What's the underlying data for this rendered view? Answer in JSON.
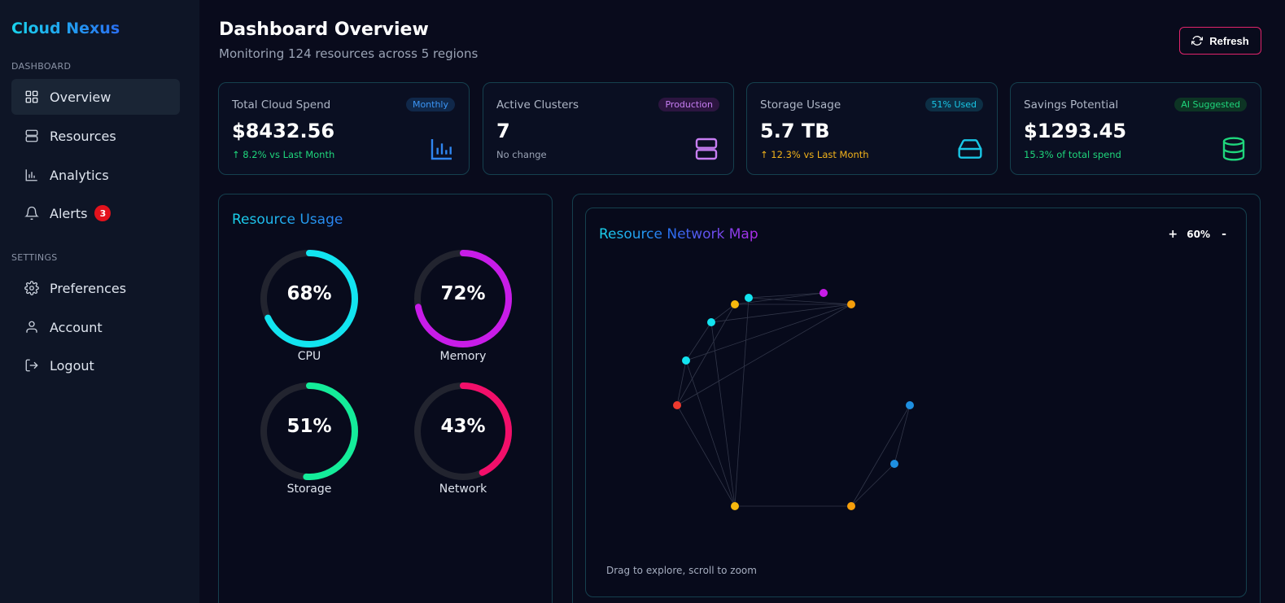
{
  "sidebar": {
    "logo": "Cloud Nexus",
    "sections": [
      {
        "label": "DASHBOARD"
      },
      {
        "label": "SETTINGS"
      }
    ],
    "items": [
      {
        "label": "Overview",
        "icon": "grid-icon",
        "active": true
      },
      {
        "label": "Resources",
        "icon": "server-icon"
      },
      {
        "label": "Analytics",
        "icon": "bar-chart-icon"
      },
      {
        "label": "Alerts",
        "icon": "bell-icon",
        "badge": "3"
      },
      {
        "label": "Preferences",
        "icon": "gear-icon"
      },
      {
        "label": "Account",
        "icon": "user-icon"
      },
      {
        "label": "Logout",
        "icon": "logout-icon"
      }
    ]
  },
  "header": {
    "title": "Dashboard Overview",
    "subtitle": "Monitoring 124 resources across 5 regions",
    "refresh_label": "Refresh"
  },
  "cards": [
    {
      "title": "Total Cloud Spend",
      "badge": "Monthly",
      "value": "$8432.56",
      "sub": "↑ 8.2% vs Last Month",
      "icon": "bar-chart-icon",
      "accent": "#2f86f0"
    },
    {
      "title": "Active Clusters",
      "badge": "Production",
      "value": "7",
      "sub": "No change",
      "icon": "server-icon",
      "accent": "#c77ef3"
    },
    {
      "title": "Storage Usage",
      "badge": "51% Used",
      "value": "5.7 TB",
      "sub": "↑ 12.3% vs Last Month",
      "icon": "hard-drive-icon",
      "accent": "#19c7e6"
    },
    {
      "title": "Savings Potential",
      "badge": "AI Suggested",
      "value": "$1293.45",
      "sub": "15.3% of total spend",
      "icon": "database-icon",
      "accent": "#1fd67c"
    }
  ],
  "resource_usage": {
    "title": "Resource Usage",
    "gauges": [
      {
        "label": "CPU",
        "value": "68%",
        "fraction": 0.68,
        "color": "#12e4f0"
      },
      {
        "label": "Memory",
        "value": "72%",
        "fraction": 0.72,
        "color": "#c81ce8"
      },
      {
        "label": "Storage",
        "value": "51%",
        "fraction": 0.51,
        "color": "#14ec9a"
      },
      {
        "label": "Network",
        "value": "43%",
        "fraction": 0.43,
        "color": "#f20f6a"
      }
    ]
  },
  "network_map": {
    "title": "Resource Network Map",
    "zoom_in": "+",
    "zoom_value": "60%",
    "zoom_out": "-",
    "hint": "Drag to explore, scroll to zoom"
  }
}
